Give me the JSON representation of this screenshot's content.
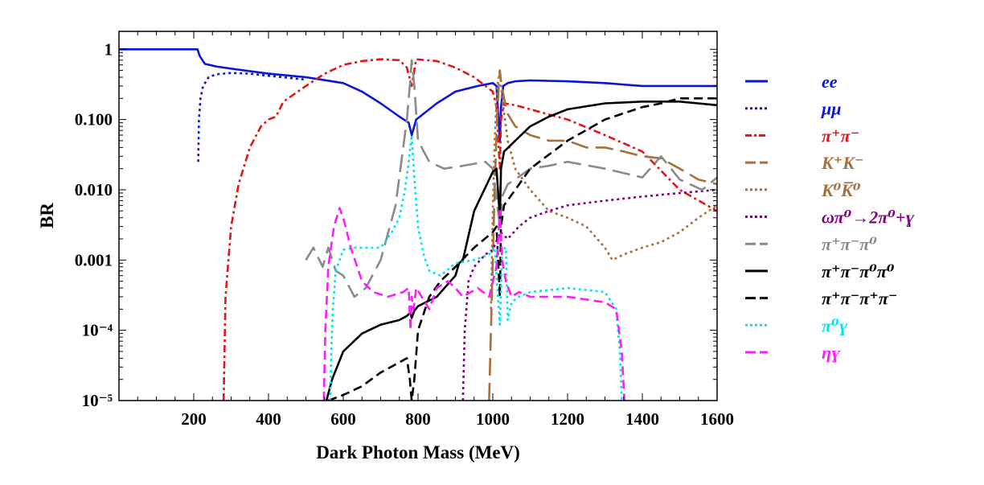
{
  "chart_data": {
    "type": "line",
    "title": "",
    "xlabel": "Dark Photon  Mass (MeV)",
    "ylabel": "BR",
    "xlim": [
      0,
      1600
    ],
    "ylim": [
      1e-05,
      2
    ],
    "yscale": "log",
    "grid": false,
    "legend_position": "right",
    "x_ticks": [
      200,
      400,
      600,
      800,
      1000,
      1200,
      1400,
      1600
    ],
    "x_tick_labels": [
      "200",
      "400",
      "600",
      "800",
      "1000",
      "1200",
      "1400",
      "1600"
    ],
    "y_ticks": [
      1,
      0.1,
      0.01,
      0.001,
      0.0001,
      1e-05
    ],
    "y_tick_labels": [
      "1",
      "0.100",
      "0.010",
      "0.001",
      "10⁻⁴",
      "10⁻⁵"
    ],
    "series": [
      {
        "name": "ee",
        "color": "#0a14dc",
        "dash": "solid",
        "x": [
          0,
          210,
          216,
          230,
          260,
          300,
          400,
          500,
          600,
          650,
          700,
          750,
          775,
          783,
          795,
          850,
          900,
          960,
          1000,
          1010,
          1019,
          1022,
          1028,
          1040,
          1060,
          1100,
          1200,
          1300,
          1400,
          1500,
          1600
        ],
        "y": [
          1,
          1,
          0.8,
          0.62,
          0.57,
          0.53,
          0.45,
          0.4,
          0.33,
          0.25,
          0.17,
          0.11,
          0.09,
          0.06,
          0.1,
          0.17,
          0.25,
          0.3,
          0.33,
          0.3,
          0.05,
          0.15,
          0.3,
          0.33,
          0.35,
          0.36,
          0.35,
          0.33,
          0.3,
          0.3,
          0.3
        ]
      },
      {
        "name": "μμ",
        "color": "#0a14dc",
        "dash": "dot",
        "x": [
          212,
          214,
          218,
          225,
          240,
          260,
          300,
          350,
          400,
          500
        ],
        "y": [
          0.025,
          0.1,
          0.2,
          0.3,
          0.4,
          0.44,
          0.46,
          0.45,
          0.42,
          0.37
        ]
      },
      {
        "name": "π⁺π⁻",
        "color": "#e61414",
        "dash": "dashdot",
        "x": [
          280,
          285,
          300,
          320,
          350,
          380,
          400,
          420,
          440,
          500,
          550,
          600,
          650,
          700,
          750,
          770,
          783,
          795,
          850,
          900,
          950,
          1000,
          1010,
          1019,
          1022,
          1030,
          1060,
          1100,
          1200,
          1300,
          1400,
          1500,
          1600
        ],
        "y": [
          1e-05,
          0.0003,
          0.003,
          0.012,
          0.04,
          0.08,
          0.1,
          0.11,
          0.18,
          0.3,
          0.45,
          0.6,
          0.68,
          0.72,
          0.7,
          0.55,
          0.3,
          0.72,
          0.68,
          0.55,
          0.4,
          0.25,
          0.15,
          0.02,
          0.1,
          0.17,
          0.16,
          0.14,
          0.1,
          0.06,
          0.035,
          0.01,
          0.005
        ]
      },
      {
        "name": "K⁺K⁻",
        "color": "#a5703a",
        "dash": "longdash",
        "x": [
          990,
          995,
          1000,
          1005,
          1010,
          1015,
          1019,
          1022,
          1030,
          1040,
          1060,
          1100,
          1150,
          1200,
          1250,
          1300,
          1350,
          1400,
          1450,
          1500,
          1550,
          1600
        ],
        "y": [
          1e-05,
          0.0001,
          0.001,
          0.01,
          0.06,
          0.25,
          0.5,
          0.35,
          0.2,
          0.12,
          0.08,
          0.06,
          0.05,
          0.05,
          0.04,
          0.04,
          0.035,
          0.03,
          0.028,
          0.02,
          0.014,
          0.012
        ]
      },
      {
        "name": "K⁰K̅⁰",
        "color": "#a5703a",
        "dash": "dot",
        "x": [
          995,
          1000,
          1005,
          1012,
          1019,
          1025,
          1040,
          1060,
          1100,
          1150,
          1200,
          1250,
          1300,
          1320,
          1350,
          1400,
          1450,
          1500,
          1550,
          1600
        ],
        "y": [
          0.0002,
          0.005,
          0.05,
          0.3,
          0.5,
          0.2,
          0.05,
          0.02,
          0.01,
          0.005,
          0.004,
          0.003,
          0.0015,
          0.001,
          0.0012,
          0.0015,
          0.0018,
          0.0025,
          0.004,
          0.006
        ]
      },
      {
        "name": "ωπ⁰→2π⁰+ɣ",
        "color": "#800080",
        "dash": "dot",
        "x": [
          920,
          925,
          935,
          950,
          980,
          1000,
          1020,
          1040,
          1070,
          1100,
          1150,
          1200,
          1300,
          1400,
          1500,
          1600
        ],
        "y": [
          1e-05,
          0.0001,
          0.0005,
          0.0008,
          0.0012,
          0.0014,
          0.0025,
          0.002,
          0.003,
          0.004,
          0.005,
          0.006,
          0.007,
          0.008,
          0.009,
          0.01
        ]
      },
      {
        "name": "π⁺π⁻π⁰",
        "color": "#8a8a8a",
        "dash": "longdash",
        "x": [
          500,
          520,
          545,
          560,
          580,
          600,
          630,
          660,
          700,
          740,
          770,
          780,
          783,
          790,
          800,
          830,
          870,
          920,
          980,
          1000,
          1019,
          1025,
          1040,
          1060,
          1100,
          1150,
          1200,
          1300,
          1400,
          1450,
          1500,
          1560,
          1600
        ],
        "y": [
          0.001,
          0.0015,
          0.0008,
          0.0015,
          0.0007,
          0.0006,
          0.0003,
          0.0004,
          0.001,
          0.006,
          0.1,
          0.4,
          0.7,
          0.3,
          0.05,
          0.025,
          0.02,
          0.022,
          0.025,
          0.02,
          0.003,
          0.008,
          0.012,
          0.014,
          0.02,
          0.022,
          0.025,
          0.02,
          0.015,
          0.03,
          0.014,
          0.01,
          0.015
        ]
      },
      {
        "name": "π⁺π⁻π⁰π⁰",
        "color": "#000000",
        "dash": "solid",
        "x": [
          555,
          570,
          600,
          650,
          700,
          750,
          770,
          780,
          783,
          790,
          800,
          850,
          900,
          910,
          920,
          950,
          1000,
          1010,
          1019,
          1022,
          1030,
          1060,
          1100,
          1150,
          1200,
          1300,
          1400,
          1500,
          1600
        ],
        "y": [
          1e-05,
          2e-05,
          5e-05,
          9e-05,
          0.00012,
          0.00014,
          0.00016,
          0.00018,
          0.00015,
          0.00019,
          0.00022,
          0.0003,
          0.0006,
          0.0009,
          0.001,
          0.005,
          0.018,
          0.02,
          0.004,
          0.02,
          0.035,
          0.05,
          0.08,
          0.11,
          0.14,
          0.17,
          0.18,
          0.18,
          0.16
        ]
      },
      {
        "name": "π⁺π⁻π⁺π⁻",
        "color": "#000000",
        "dash": "dash",
        "x": [
          560,
          600,
          650,
          700,
          750,
          770,
          778,
          783,
          790,
          800,
          830,
          860,
          900,
          950,
          1000,
          1010,
          1019,
          1022,
          1030,
          1060,
          1100,
          1200,
          1300,
          1400,
          1450,
          1500,
          1550,
          1600
        ],
        "y": [
          1e-05,
          1.2e-05,
          1.6e-05,
          2.5e-05,
          3.5e-05,
          4e-05,
          2e-05,
          1e-05,
          2e-05,
          0.0001,
          0.0003,
          0.0005,
          0.0008,
          0.0015,
          0.0025,
          0.003,
          0.0003,
          0.003,
          0.006,
          0.01,
          0.02,
          0.05,
          0.1,
          0.15,
          0.17,
          0.2,
          0.2,
          0.2
        ]
      },
      {
        "name": "π⁰ɣ",
        "color": "#00e5ee",
        "dash": "dot",
        "x": [
          565,
          568,
          572,
          580,
          600,
          630,
          660,
          700,
          730,
          750,
          765,
          775,
          783,
          790,
          800,
          815,
          830,
          860,
          900,
          950,
          990,
          1005,
          1019,
          1025,
          1035,
          1040,
          1050,
          1070,
          1100,
          1200,
          1300,
          1330,
          1340,
          1345
        ],
        "y": [
          1e-05,
          5e-05,
          0.0002,
          0.0007,
          0.0014,
          0.0015,
          0.0015,
          0.0015,
          0.0025,
          0.004,
          0.01,
          0.025,
          0.06,
          0.015,
          0.003,
          0.0012,
          0.0007,
          0.0006,
          0.0009,
          0.001,
          0.0012,
          0.0015,
          0.00012,
          0.0014,
          0.0015,
          0.00014,
          0.00025,
          0.0003,
          0.00035,
          0.0004,
          0.00035,
          0.0002,
          5e-05,
          1e-05
        ]
      },
      {
        "name": "ηɣ",
        "color": "#ff1aff",
        "dash": "dash",
        "x": [
          548,
          552,
          560,
          575,
          590,
          600,
          620,
          650,
          680,
          720,
          760,
          775,
          780,
          783,
          788,
          795,
          810,
          830,
          850,
          880,
          900,
          920,
          960,
          990,
          1010,
          1019,
          1025,
          1035,
          1050,
          1070,
          1100,
          1200,
          1300,
          1330,
          1345,
          1352
        ],
        "y": [
          1e-05,
          0.0001,
          0.0008,
          0.003,
          0.0055,
          0.004,
          0.0015,
          0.0005,
          0.00035,
          0.0003,
          0.00035,
          0.0004,
          0.0001,
          0.0003,
          0.0002,
          0.0004,
          0.0003,
          0.0002,
          0.0004,
          0.0005,
          0.0004,
          0.0003,
          0.0004,
          0.0003,
          0.0008,
          0.005,
          0.001,
          0.0005,
          0.0003,
          0.00035,
          0.0003,
          0.0003,
          0.00025,
          0.0002,
          5e-05,
          1e-05
        ]
      }
    ]
  }
}
